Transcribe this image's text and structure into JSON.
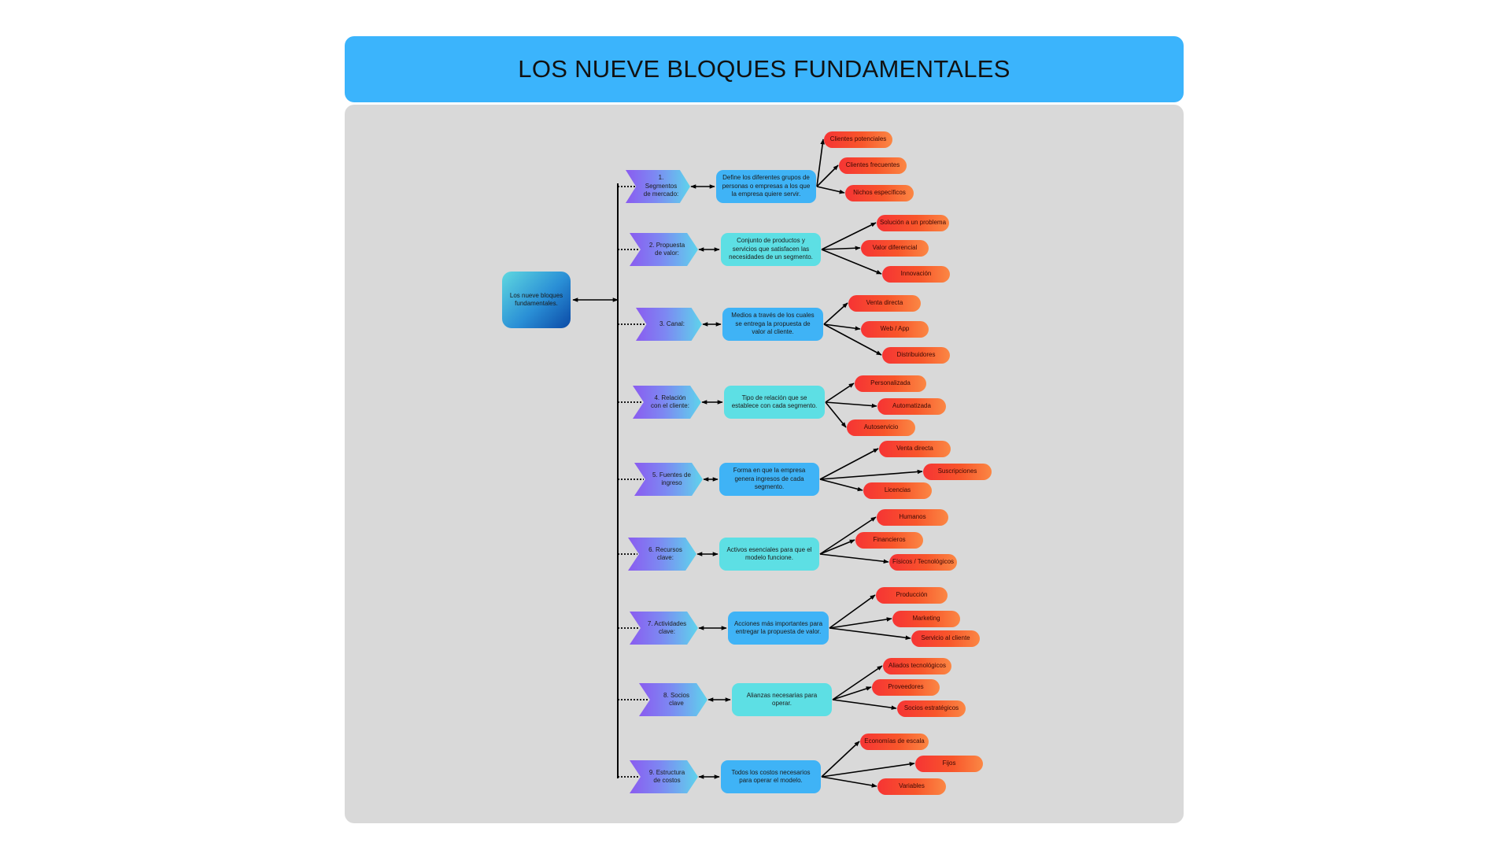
{
  "header": {
    "title": "LOS NUEVE BLOQUES FUNDAMENTALES"
  },
  "colors": {
    "header": "#3bb4fc",
    "canvas": "#d9d9d9",
    "connector": "#000000",
    "description_blue": "#3fb3f6",
    "description_cyan": "#5ddfe4",
    "leaf_start": "#f63434",
    "leaf_end": "#fb8744"
  },
  "root": {
    "label": "Los nueve bloques fundamentales."
  },
  "blocks": [
    {
      "title": "1.  Segmentos de mercado:",
      "description": "Define los diferentes grupos de personas o empresas a los que la empresa quiere servir.",
      "items": [
        "Clientes potenciales",
        "Clientes frecuentes",
        "Nichos específicos"
      ]
    },
    {
      "title": "2. Propuesta de valor:",
      "description": "Conjunto de productos y servicios que satisfacen las necesidades de un segmento.",
      "items": [
        "Solución a un problema",
        "Valor diferencial",
        "Innovación"
      ]
    },
    {
      "title": "3. Canal:",
      "description": "Medios a través de los cuales se entrega la propuesta de valor al cliente.",
      "items": [
        "Venta directa",
        "Web / App",
        "Distribuidores"
      ]
    },
    {
      "title": "4. Relación con el cliente:",
      "description": "Tipo de relación que se establece con cada segmento.",
      "items": [
        "Personalizada",
        "Automatizada",
        "Autoservicio"
      ]
    },
    {
      "title": "5. Fuentes de ingreso",
      "description": "Forma en que la empresa genera ingresos de cada segmento.",
      "items": [
        "Venta directa",
        "Suscripciones",
        "Licencias"
      ]
    },
    {
      "title": "6. Recursos clave:",
      "description": "Activos esenciales para que el modelo funcione.",
      "items": [
        "Humanos",
        "Financieros",
        "Físicos / Tecnológicos"
      ]
    },
    {
      "title": "7. Actividades clave:",
      "description": "Acciones más importantes para entregar la propuesta de valor.",
      "items": [
        "Producción",
        "Marketing",
        "Servicio al cliente"
      ]
    },
    {
      "title": "8. Socios clave",
      "description": "Alianzas necesarias para operar.",
      "items": [
        "Aliados tecnológicos",
        "Proveedores",
        "Socios estratégicos"
      ]
    },
    {
      "title": "9. Estructura de costos",
      "description": "Todos los costos necesarios para operar el modelo.",
      "items": [
        "Economías de escala",
        "Fijos",
        "Variables"
      ]
    }
  ]
}
